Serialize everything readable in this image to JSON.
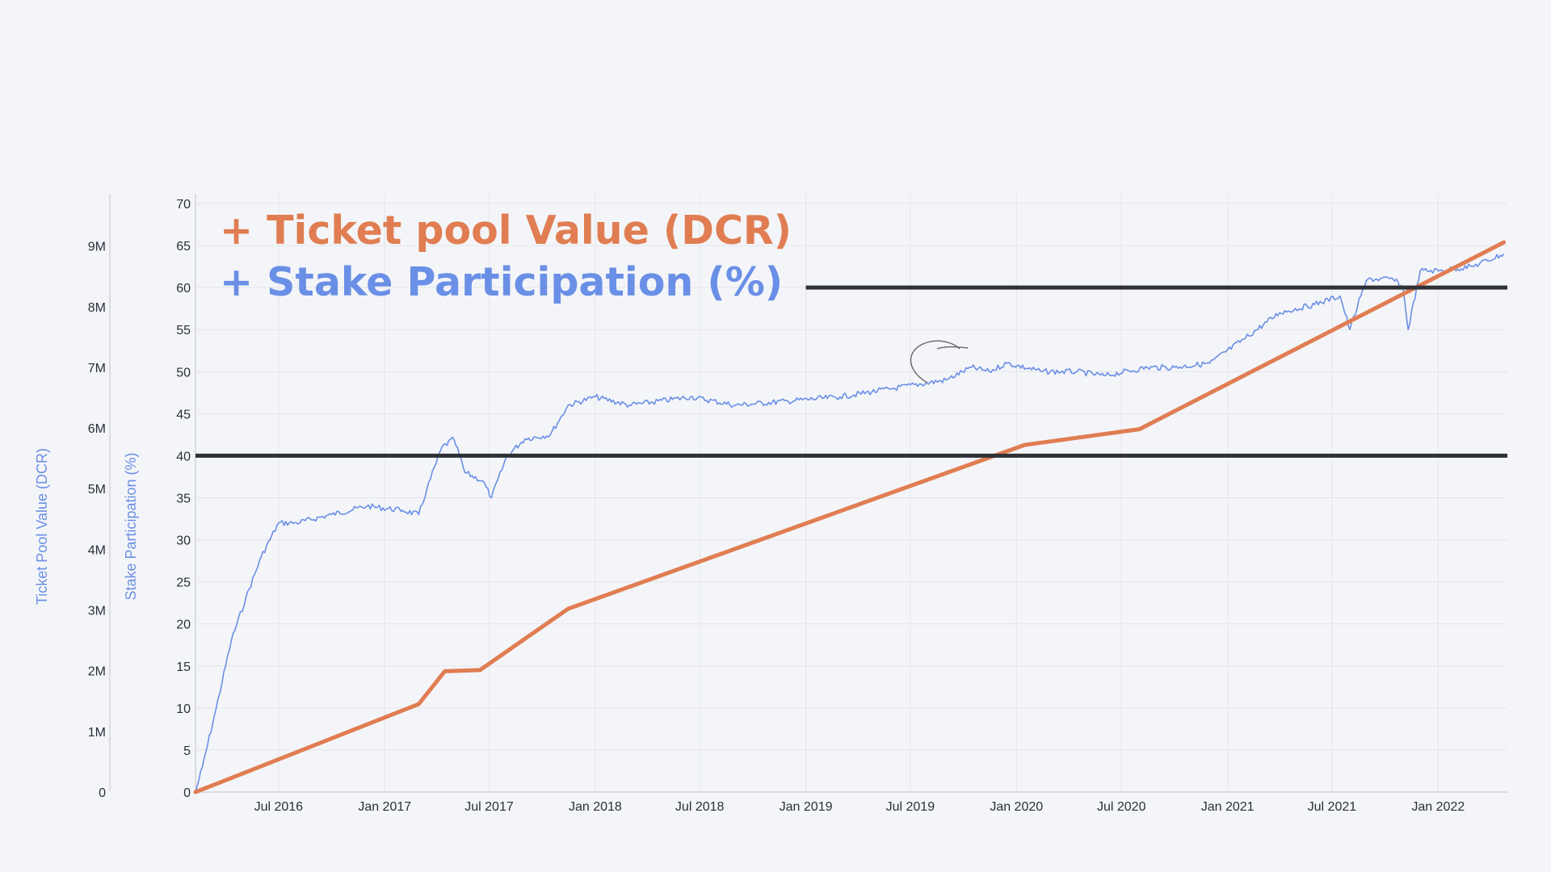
{
  "chart_data": {
    "type": "line",
    "legend_placement": "top-left",
    "grid": true,
    "colors": {
      "ticket_pool": "#e07d52",
      "stake": "#6a8fe6",
      "reference_lines": "#2e3136",
      "axis_titles": "#6a8fe6",
      "annotation_scribble": "#666666"
    },
    "legend": [
      {
        "text": "+ Ticket pool Value (DCR)",
        "color": "#e07d52"
      },
      {
        "text": "+ Stake Participation (%)",
        "color": "#6a8fe6"
      }
    ],
    "x_axis": {
      "range": [
        "2016-02-08",
        "2022-05-01"
      ],
      "tick_labels": [
        "Jul 2016",
        "Jan 2017",
        "Jul 2017",
        "Jan 2018",
        "Jul 2018",
        "Jan 2019",
        "Jul 2019",
        "Jan 2020",
        "Jul 2020",
        "Jan 2021",
        "Jul 2021",
        "Jan 2022"
      ],
      "ticks": [
        "2016-07-01",
        "2017-01-01",
        "2017-07-01",
        "2018-01-01",
        "2018-07-01",
        "2019-01-01",
        "2019-07-01",
        "2020-01-01",
        "2020-07-01",
        "2021-01-01",
        "2021-07-01",
        "2022-01-01"
      ]
    },
    "y_axes": {
      "stake": {
        "label": "Stake Participation (%)",
        "range": [
          0,
          70
        ],
        "ticks": [
          "0",
          "5",
          "10",
          "15",
          "20",
          "25",
          "30",
          "35",
          "40",
          "45",
          "50",
          "55",
          "60",
          "65",
          "70"
        ]
      },
      "ticket_pool": {
        "label": "Ticket Pool Value (DCR)",
        "range": [
          0,
          9900000
        ],
        "ticks": [
          "0",
          "1M",
          "2M",
          "3M",
          "4M",
          "5M",
          "6M",
          "7M",
          "8M",
          "9M"
        ]
      }
    },
    "series": [
      {
        "key": "ticket_pool",
        "axis": "ticket_pool",
        "x": [
          "2016-02-08",
          "2017-03-01",
          "2017-04-15",
          "2017-06-15",
          "2017-11-15",
          "2020-01-15",
          "2020-08-01",
          "2022-04-25"
        ],
        "y": [
          0,
          1450000,
          1990000,
          2010000,
          3020000,
          5720000,
          5980000,
          9060000
        ]
      },
      {
        "key": "stake",
        "axis": "stake",
        "x": [
          "2016-02-08",
          "2016-02-20",
          "2016-03-15",
          "2016-04-10",
          "2016-05-05",
          "2016-06-01",
          "2016-07-01",
          "2016-08-01",
          "2016-10-01",
          "2016-12-01",
          "2017-02-01",
          "2017-03-01",
          "2017-03-15",
          "2017-04-10",
          "2017-05-01",
          "2017-05-20",
          "2017-06-20",
          "2017-07-05",
          "2017-08-01",
          "2017-09-01",
          "2017-10-15",
          "2017-11-15",
          "2018-01-01",
          "2018-03-01",
          "2018-06-15",
          "2018-09-01",
          "2018-12-01",
          "2019-03-01",
          "2019-06-01",
          "2019-09-01",
          "2019-10-15",
          "2019-11-15",
          "2019-12-15",
          "2020-02-15",
          "2020-04-15",
          "2020-06-01",
          "2020-08-15",
          "2020-10-01",
          "2020-12-01",
          "2021-02-01",
          "2021-04-01",
          "2021-06-01",
          "2021-07-15",
          "2021-08-01",
          "2021-08-20",
          "2021-09-01",
          "2021-10-15",
          "2021-11-01",
          "2021-11-10",
          "2021-12-01",
          "2022-01-01",
          "2022-03-01",
          "2022-04-25"
        ],
        "y": [
          0,
          3,
          10,
          18,
          23,
          28,
          32,
          32,
          33,
          34,
          33.5,
          33,
          36,
          41,
          42,
          38,
          37,
          35,
          40,
          42,
          42.5,
          46,
          47,
          46,
          47,
          46,
          46.5,
          47,
          48,
          49,
          50.5,
          50,
          51,
          50,
          50,
          49.5,
          50.5,
          50.5,
          51,
          54,
          57,
          58,
          59,
          55,
          59,
          61,
          61,
          60,
          55,
          62,
          62,
          62.5,
          64
        ]
      }
    ],
    "reference_lines": [
      {
        "axis": "stake",
        "y": 40,
        "x_start": "2016-02-08",
        "x_end": "2022-05-01"
      },
      {
        "axis": "stake",
        "y": 60,
        "x_start": "2019-01-01",
        "x_end": "2022-05-01"
      }
    ]
  }
}
